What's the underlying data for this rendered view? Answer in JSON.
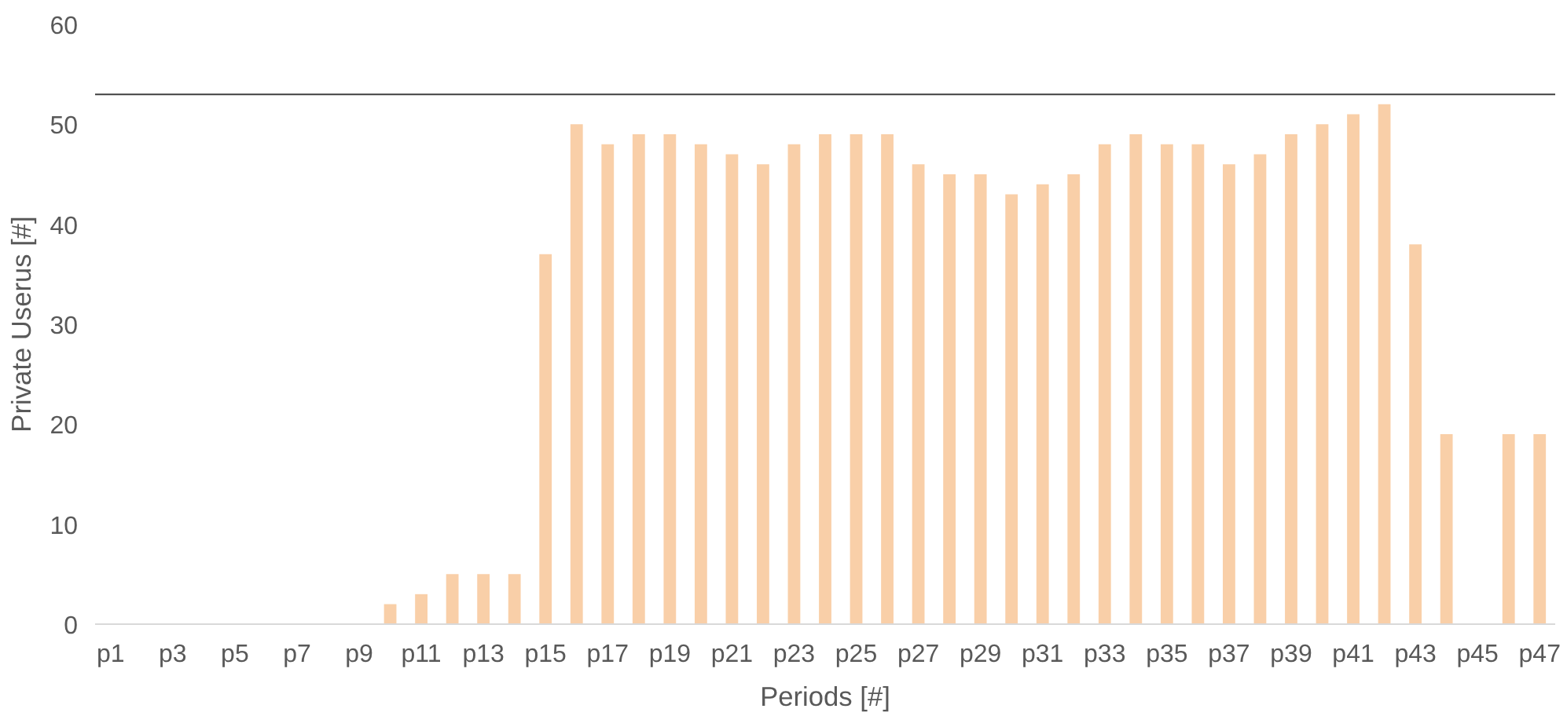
{
  "chart_data": {
    "type": "bar",
    "xlabel": "Periods [#]",
    "ylabel": "Private Userus [#]",
    "categories": [
      "p1",
      null,
      "p3",
      null,
      "p5",
      null,
      "p7",
      null,
      "p9",
      null,
      "p11",
      null,
      "p13",
      null,
      "p15",
      null,
      "p17",
      null,
      "p19",
      null,
      "p21",
      null,
      "p23",
      null,
      "p25",
      null,
      "p27",
      null,
      "p29",
      null,
      "p31",
      null,
      "p33",
      null,
      "p35",
      null,
      "p37",
      null,
      "p39",
      null,
      "p41",
      null,
      "p43",
      null,
      "p45",
      null,
      "p47"
    ],
    "values": [
      0,
      0,
      0,
      0,
      0,
      0,
      0,
      0,
      0,
      2,
      3,
      5,
      5,
      5,
      37,
      50,
      48,
      49,
      49,
      48,
      47,
      46,
      48,
      49,
      49,
      49,
      46,
      45,
      45,
      43,
      44,
      45,
      48,
      49,
      48,
      48,
      46,
      47,
      49,
      50,
      51,
      52,
      38,
      19,
      0,
      19,
      19
    ],
    "color": "#f9cfa8",
    "ylim": [
      0,
      60
    ],
    "yticks": [
      0,
      10,
      20,
      30,
      40,
      50,
      60
    ],
    "grid": false,
    "ref_lines": [
      {
        "axis": "y",
        "value": 53,
        "color": "#404040"
      }
    ]
  }
}
